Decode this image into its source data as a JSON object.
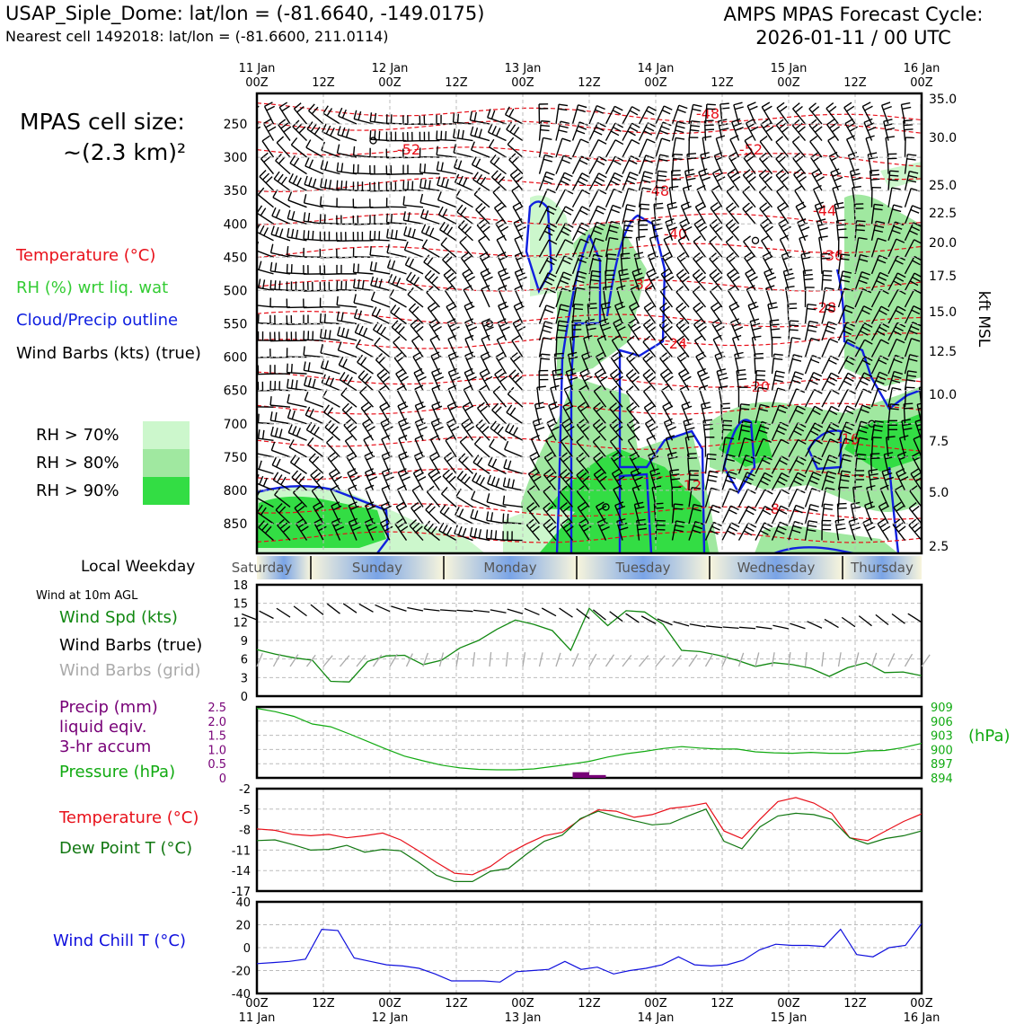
{
  "header": {
    "station": "USAP_Siple_Dome: lat/lon = (-81.6640, -149.0175)",
    "nearest": "Nearest cell 1492018: lat/lon = (-81.6600, 211.0114)",
    "forecast_title": "AMPS MPAS Forecast Cycle:",
    "forecast_cycle": "2026-01-11 / 00 UTC"
  },
  "legend_top": {
    "cell_size_1": "MPAS cell size:",
    "cell_size_2": "~(2.3 km)²",
    "temperature": "Temperature (°C)",
    "rh": "RH (%) wrt liq. wat",
    "cloud": "Cloud/Precip outline",
    "barbs": "Wind Barbs (kts) (true)",
    "rh70": "RH > 70%",
    "rh80": "RH > 80%",
    "rh90": "RH > 90%"
  },
  "weekday": {
    "label": "Local Weekday",
    "days": [
      "Saturday",
      "Sunday",
      "Monday",
      "Tuesday",
      "Wednesday",
      "Thursday"
    ]
  },
  "legend_bottom": {
    "wind_at": "Wind at 10m AGL",
    "wind_spd": "Wind Spd (kts)",
    "barbs_true": "Wind Barbs (true)",
    "barbs_grid": "Wind Barbs (grid)",
    "precip_1": "Precip (mm)",
    "precip_2": "liquid eqiv.",
    "precip_3": "3-hr accum",
    "pressure": "Pressure (hPa)",
    "pressure_unit": "(hPa)",
    "temp": "Temperature (°C)",
    "dewpt": "Dew Point T (°C)",
    "windchill": "Wind Chill T (°C)"
  },
  "colors": {
    "temperature": "#e8101a",
    "rh_label": "#33cc33",
    "cloud": "#1020e0",
    "rh70": "#ccf7cc",
    "rh80": "#a0e8a0",
    "rh90": "#33dd44",
    "wind_spd": "#118811",
    "barbs_grid": "#aaaaaa",
    "precip": "#770077",
    "pressure": "#11aa11",
    "dewpt": "#117711",
    "windchill": "#1010dd"
  },
  "chart_data": [
    {
      "type": "time-height",
      "time_axis_top": [
        {
          "t": 0,
          "line1": "11 Jan",
          "line2": "00Z"
        },
        {
          "t": 12,
          "line1": "",
          "line2": "12Z"
        },
        {
          "t": 24,
          "line1": "12 Jan",
          "line2": "00Z"
        },
        {
          "t": 36,
          "line1": "",
          "line2": "12Z"
        },
        {
          "t": 48,
          "line1": "13 Jan",
          "line2": "00Z"
        },
        {
          "t": 60,
          "line1": "",
          "line2": "12Z"
        },
        {
          "t": 72,
          "line1": "14 Jan",
          "line2": "00Z"
        },
        {
          "t": 84,
          "line1": "",
          "line2": "12Z"
        },
        {
          "t": 96,
          "line1": "15 Jan",
          "line2": "00Z"
        },
        {
          "t": 108,
          "line1": "",
          "line2": "12Z"
        },
        {
          "t": 120,
          "line1": "16 Jan",
          "line2": "00Z"
        }
      ],
      "pressure_ticks": [
        250,
        300,
        350,
        400,
        450,
        500,
        550,
        600,
        650,
        700,
        750,
        800,
        850
      ],
      "kft_ticks": [
        "35.0",
        "30.0",
        "25.0",
        "22.5",
        "20.0",
        "17.5",
        "15.0",
        "12.5",
        "10.0",
        "7.5",
        "5.0",
        "2.5"
      ],
      "kft_label": "kft MSL",
      "temperature_contour_labels": [
        "-52",
        "-48",
        "-52",
        "-48",
        "-44",
        "-40",
        "-36",
        "-32",
        "-28",
        "-24",
        "-20",
        "-16",
        "-12",
        "-8"
      ]
    },
    {
      "type": "line",
      "name": "wind",
      "yticks": [
        "18",
        "15",
        "12",
        "9",
        "6",
        "3",
        "0"
      ],
      "ylim": [
        0,
        18
      ],
      "wind_speed_kts": [
        7.5,
        6.8,
        6.2,
        5.8,
        2.4,
        2.3,
        5.6,
        6.5,
        6.6,
        5.1,
        5.8,
        7.8,
        9.0,
        10.8,
        12.3,
        11.6,
        10.6,
        7.4,
        14.2,
        11.4,
        13.8,
        13.6,
        11.6,
        7.4,
        7.2,
        6.6,
        5.8,
        4.8,
        5.4,
        5.1,
        4.5,
        3.2,
        4.6,
        5.4,
        3.8,
        3.9,
        3.3
      ]
    },
    {
      "type": "line+bar",
      "name": "precip-pressure",
      "precip_ticks": [
        "2.5",
        "2.0",
        "1.5",
        "1.0",
        "0.5",
        "0"
      ],
      "precip_ylim": [
        0,
        2.5
      ],
      "pressure_ticks": [
        "909",
        "906",
        "903",
        "900",
        "897",
        "894"
      ],
      "pressure_ylim": [
        894,
        909
      ],
      "pressure_hpa": [
        908.7,
        908.0,
        907.0,
        905.4,
        904.8,
        903.3,
        901.7,
        900.1,
        898.6,
        897.6,
        896.7,
        896.1,
        895.8,
        895.7,
        895.7,
        895.9,
        896.4,
        896.9,
        897.5,
        898.4,
        899.1,
        899.6,
        900.2,
        900.6,
        900.3,
        900.1,
        900.1,
        899.5,
        899.3,
        899.2,
        899.4,
        899.2,
        899.2,
        899.7,
        899.8,
        900.4,
        901.3
      ],
      "precip_mm_3hr": [
        {
          "t": 57,
          "v": 0.2
        },
        {
          "t": 60,
          "v": 0.1
        }
      ]
    },
    {
      "type": "line",
      "name": "temperature-dewpoint",
      "yticks": [
        "-2",
        "-5",
        "-8",
        "-11",
        "-14",
        "-17"
      ],
      "ylim": [
        -17,
        -2
      ],
      "temperature_c": [
        -7.9,
        -8.1,
        -8.7,
        -8.9,
        -8.7,
        -9.2,
        -8.9,
        -8.5,
        -9.5,
        -11.1,
        -12.8,
        -14.4,
        -14.6,
        -13.4,
        -11.5,
        -10.1,
        -8.9,
        -8.4,
        -6.5,
        -5.1,
        -5.3,
        -6.2,
        -5.8,
        -4.9,
        -4.6,
        -4.1,
        -8.2,
        -9.3,
        -6.5,
        -3.9,
        -3.3,
        -4.1,
        -5.6,
        -9.2,
        -9.6,
        -8.2,
        -6.8,
        -5.7
      ],
      "dewpoint_c": [
        -9.6,
        -9.5,
        -10.2,
        -11.0,
        -10.9,
        -10.3,
        -11.3,
        -10.9,
        -11.1,
        -12.8,
        -14.7,
        -15.6,
        -15.6,
        -14.1,
        -13.7,
        -11.6,
        -9.7,
        -8.8,
        -6.4,
        -5.3,
        -6.1,
        -6.7,
        -7.3,
        -7.1,
        -6.0,
        -5.0,
        -9.7,
        -10.8,
        -7.6,
        -6.0,
        -5.6,
        -5.8,
        -6.5,
        -9.2,
        -10.1,
        -9.3,
        -8.9,
        -8.2
      ]
    },
    {
      "type": "line",
      "name": "wind-chill",
      "yticks": [
        "40",
        "20",
        "0",
        "-20",
        "-40"
      ],
      "ylim": [
        -40,
        40
      ],
      "wind_chill_c": [
        -14,
        -13,
        -12,
        -10,
        16,
        15,
        -9,
        -12,
        -15,
        -16,
        -18,
        -23,
        -29,
        -29,
        -29,
        -30,
        -21,
        -20,
        -19,
        -12,
        -19,
        -17,
        -23,
        -20,
        -18,
        -15,
        -8,
        -15,
        -16,
        -15,
        -11,
        -2,
        3,
        2,
        2,
        1,
        16,
        -6,
        -8,
        0,
        2,
        21
      ],
      "bottom_ticks": [
        {
          "line1": "00Z",
          "line2": "11 Jan"
        },
        {
          "line1": "12Z",
          "line2": ""
        },
        {
          "line1": "00Z",
          "line2": "12 Jan"
        },
        {
          "line1": "12Z",
          "line2": ""
        },
        {
          "line1": "00Z",
          "line2": "13 Jan"
        },
        {
          "line1": "12Z",
          "line2": ""
        },
        {
          "line1": "00Z",
          "line2": "14 Jan"
        },
        {
          "line1": "12Z",
          "line2": ""
        },
        {
          "line1": "00Z",
          "line2": "15 Jan"
        },
        {
          "line1": "12Z",
          "line2": ""
        },
        {
          "line1": "00Z",
          "line2": "16 Jan"
        }
      ]
    }
  ]
}
